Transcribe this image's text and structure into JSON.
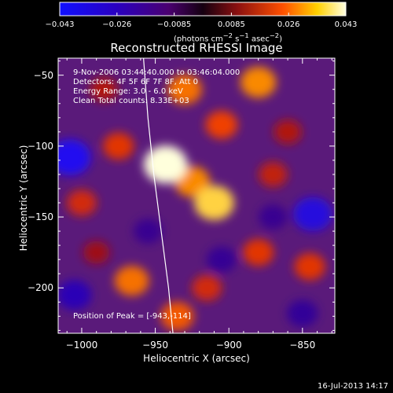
{
  "colorbar": {
    "ticks": [
      "−0.043",
      "−0.026",
      "−0.0085",
      "0.0085",
      "0.026",
      "0.043"
    ],
    "units_html": "(photons cm<sup>−2</sup> s<sup>−1</sup> asec<sup>−2</sup>)"
  },
  "chart_data": {
    "type": "heatmap",
    "title": "Reconstructed RHESSI Image",
    "xlabel": "Heliocentric X (arcsec)",
    "ylabel": "Heliocentric Y (arcsec)",
    "xlim": [
      -1016,
      -828
    ],
    "ylim": [
      -232,
      -38
    ],
    "x_ticks": [
      "−1000",
      "−950",
      "−900",
      "−850"
    ],
    "x_tick_values": [
      -1000,
      -950,
      -900,
      -850
    ],
    "y_ticks": [
      "−50",
      "−100",
      "−150",
      "−200"
    ],
    "y_tick_values": [
      -50,
      -100,
      -150,
      -200
    ],
    "colorscale_range": [
      -0.043,
      0.043
    ],
    "annotations": [
      "9-Nov-2006 03:44:40.000 to 03:46:04.000",
      "Detectors: 4F 5F 6F 7F 8F, Att 0",
      "Energy Range: 3.0 - 6.0 keV",
      "Clean    Total counts: 8.33E+03"
    ],
    "peak_label": "Position of Peak = [-943,-114]",
    "peak": [
      -943,
      -114
    ],
    "blobs": [
      {
        "x": -943,
        "y": -113,
        "v": 0.043
      },
      {
        "x": -910,
        "y": -140,
        "v": 0.037
      },
      {
        "x": -925,
        "y": -125,
        "v": 0.03
      },
      {
        "x": -880,
        "y": -55,
        "v": 0.03
      },
      {
        "x": -930,
        "y": -60,
        "v": 0.028
      },
      {
        "x": -905,
        "y": -85,
        "v": 0.024
      },
      {
        "x": -975,
        "y": -100,
        "v": 0.022
      },
      {
        "x": -966,
        "y": -195,
        "v": 0.028
      },
      {
        "x": -935,
        "y": -220,
        "v": 0.026
      },
      {
        "x": -915,
        "y": -200,
        "v": 0.02
      },
      {
        "x": -880,
        "y": -175,
        "v": 0.022
      },
      {
        "x": -845,
        "y": -185,
        "v": 0.022
      },
      {
        "x": -1000,
        "y": -140,
        "v": 0.02
      },
      {
        "x": -870,
        "y": -120,
        "v": 0.018
      },
      {
        "x": -985,
        "y": -60,
        "v": 0.016
      },
      {
        "x": -860,
        "y": -90,
        "v": 0.016
      },
      {
        "x": -990,
        "y": -175,
        "v": 0.014
      },
      {
        "x": -1008,
        "y": -108,
        "v": -0.04
      },
      {
        "x": -843,
        "y": -148,
        "v": -0.036
      },
      {
        "x": -1005,
        "y": -205,
        "v": -0.028
      },
      {
        "x": -850,
        "y": -218,
        "v": -0.022
      },
      {
        "x": -905,
        "y": -180,
        "v": -0.02
      },
      {
        "x": -870,
        "y": -150,
        "v": -0.018
      },
      {
        "x": -955,
        "y": -160,
        "v": -0.018
      }
    ],
    "limb": [
      [
        -958,
        -38
      ],
      [
        -955,
        -80
      ],
      [
        -951,
        -120
      ],
      [
        -946,
        -160
      ],
      [
        -941,
        -200
      ],
      [
        -938,
        -232
      ]
    ]
  },
  "footer": {
    "timestamp": "16-Jul-2013 14:17"
  }
}
